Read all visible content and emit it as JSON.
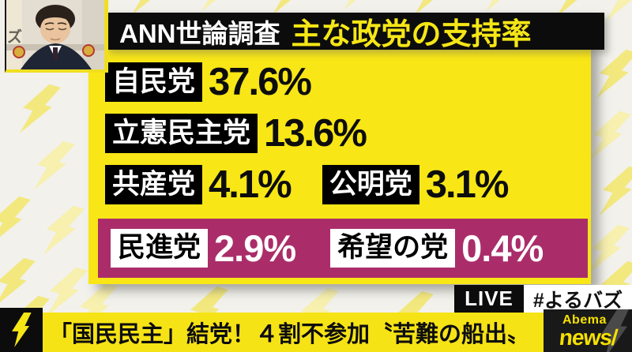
{
  "header": {
    "source": "ANN世論調査",
    "title": "主な政党の支持率"
  },
  "poll": {
    "rows": [
      {
        "party": "自民党",
        "value": "37.6%"
      },
      {
        "party": "立憲民主党",
        "value": "13.6%"
      },
      {
        "party": "共産党",
        "value": "4.1%"
      },
      {
        "party": "公明党",
        "value": "3.1%"
      },
      {
        "party": "民進党",
        "value": "2.9%"
      },
      {
        "party": "希望の党",
        "value": "0.4%"
      }
    ]
  },
  "live": {
    "badge": "LIVE",
    "hashtag": "#よるバズ"
  },
  "ticker": {
    "headline": "「国民民主」結党！４割不参加〝苦難の船出〟"
  },
  "logo": {
    "line1": "Abema",
    "line2": "news/"
  },
  "thumbnail": {
    "overlay_text": "ズ"
  },
  "colors": {
    "accent_yellow": "#f8e616",
    "magenta": "#aa2d6a",
    "black": "#0c0c0c",
    "logo_yellow": "#f5e000"
  },
  "chart_data": {
    "type": "table",
    "title": "主な政党の支持率",
    "source": "ANN世論調査",
    "categories": [
      "自民党",
      "立憲民主党",
      "共産党",
      "公明党",
      "民進党",
      "希望の党"
    ],
    "values": [
      37.6,
      13.6,
      4.1,
      3.1,
      2.9,
      0.4
    ],
    "unit": "%",
    "highlighted_categories": [
      "民進党",
      "希望の党"
    ]
  }
}
